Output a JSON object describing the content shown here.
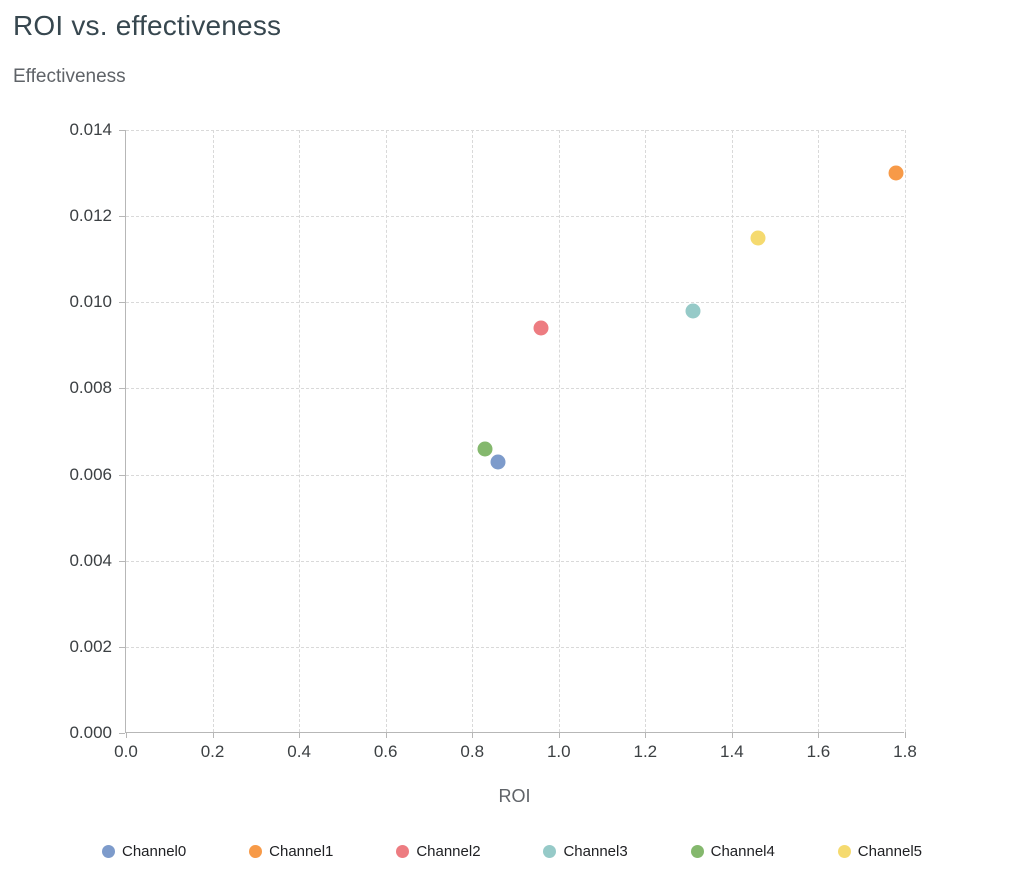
{
  "title": "ROI vs. effectiveness",
  "chart_data": {
    "type": "scatter",
    "title": "ROI vs. effectiveness",
    "xlabel": "ROI",
    "ylabel": "Effectiveness",
    "xlim": [
      0,
      1.8
    ],
    "ylim": [
      0,
      0.014
    ],
    "x_ticks": [
      0.0,
      0.2,
      0.4,
      0.6,
      0.8,
      1.0,
      1.2,
      1.4,
      1.6,
      1.8
    ],
    "x_tick_labels": [
      "0.0",
      "0.2",
      "0.4",
      "0.6",
      "0.8",
      "1.0",
      "1.2",
      "1.4",
      "1.6",
      "1.8"
    ],
    "y_ticks": [
      0.0,
      0.002,
      0.004,
      0.006,
      0.008,
      0.01,
      0.012,
      0.014
    ],
    "y_tick_labels": [
      "0.000",
      "0.002",
      "0.004",
      "0.006",
      "0.008",
      "0.010",
      "0.012",
      "0.014"
    ],
    "grid": "dashed",
    "legend_position": "bottom",
    "series": [
      {
        "name": "Channel0",
        "color": "#7292c7",
        "x": 0.86,
        "y": 0.0063
      },
      {
        "name": "Channel1",
        "color": "#f69138",
        "x": 1.78,
        "y": 0.013
      },
      {
        "name": "Channel2",
        "color": "#ec7176",
        "x": 0.96,
        "y": 0.0094
      },
      {
        "name": "Channel3",
        "color": "#8dc6c3",
        "x": 1.31,
        "y": 0.0098
      },
      {
        "name": "Channel4",
        "color": "#79b261",
        "x": 0.83,
        "y": 0.0066
      },
      {
        "name": "Channel5",
        "color": "#f4d763",
        "x": 1.46,
        "y": 0.0115
      }
    ]
  },
  "colors": {
    "title": "#37474f",
    "axis_title": "#5f6368",
    "tick_label": "#3c4043",
    "axis_line": "#b7b7b7",
    "gridline": "#d9d9d9",
    "legend_label": "#202124"
  }
}
